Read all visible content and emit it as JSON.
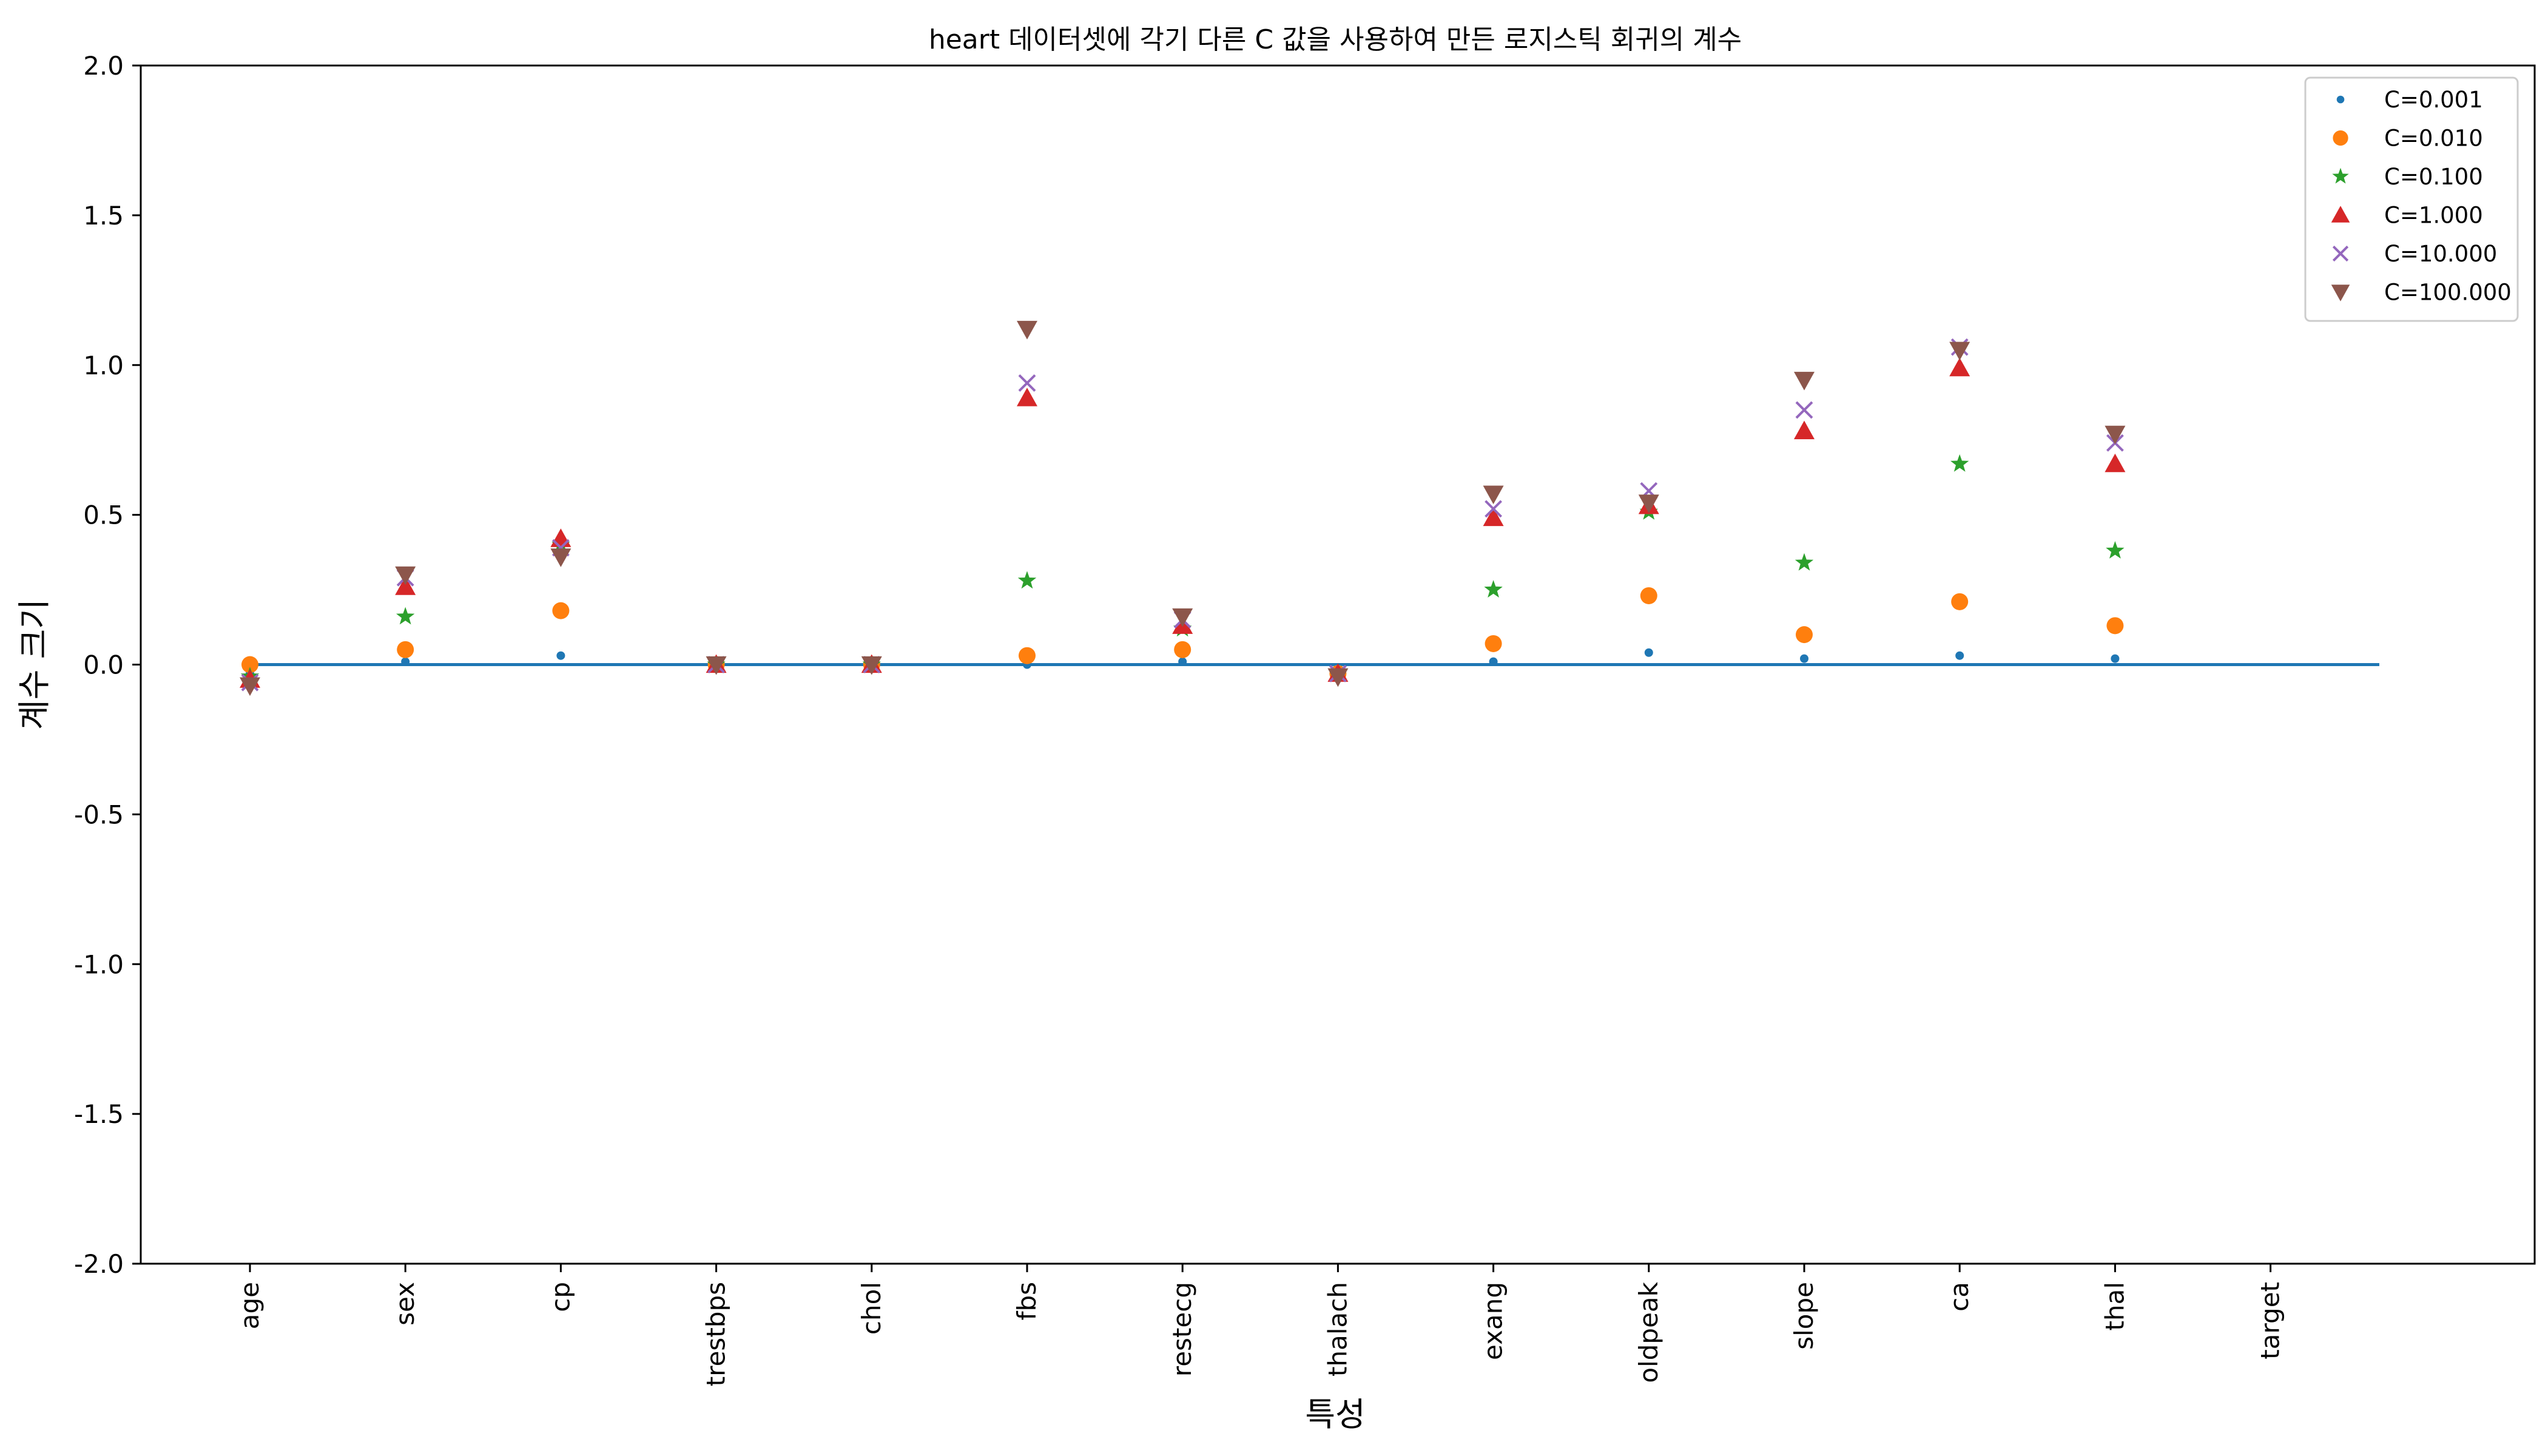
{
  "chart_data": {
    "type": "scatter",
    "title": "heart 데이터셋에 각기 다른 C 값을 사용하여 만든 로지스틱 회귀의 계수",
    "xlabel": "특성",
    "ylabel": "계수 크기",
    "ylim": [
      -2.0,
      2.0
    ],
    "yticks": [
      "-2.0",
      "-1.5",
      "-1.0",
      "-0.5",
      "0.0",
      "0.5",
      "1.0",
      "1.5",
      "2.0"
    ],
    "categories": [
      "age",
      "sex",
      "cp",
      "trestbps",
      "chol",
      "fbs",
      "restecg",
      "thalach",
      "exang",
      "oldpeak",
      "slope",
      "ca",
      "thal",
      "target"
    ],
    "grid": false,
    "legend_position": "top-right",
    "zero_line": {
      "from": "age",
      "to_index": 13.7,
      "y": 0.0,
      "color": "#1f77b4"
    },
    "series": [
      {
        "name": "C=0.001",
        "marker": "dot",
        "color": "#1f77b4",
        "values": [
          -0.03,
          0.01,
          0.03,
          0.0,
          0.0,
          0.0,
          0.01,
          -0.02,
          0.01,
          0.04,
          0.02,
          0.03,
          0.02
        ]
      },
      {
        "name": "C=0.010",
        "marker": "circle",
        "color": "#ff7f0e",
        "values": [
          0.0,
          0.05,
          0.18,
          0.0,
          0.0,
          0.03,
          0.05,
          -0.03,
          0.07,
          0.23,
          0.1,
          0.21,
          0.13
        ]
      },
      {
        "name": "C=0.100",
        "marker": "star",
        "color": "#2ca02c",
        "values": [
          -0.04,
          0.16,
          0.4,
          0.0,
          0.0,
          0.28,
          0.12,
          -0.03,
          0.25,
          0.51,
          0.34,
          0.67,
          0.38
        ]
      },
      {
        "name": "C=1.000",
        "marker": "triangle-up",
        "color": "#d62728",
        "values": [
          -0.05,
          0.26,
          0.42,
          0.0,
          0.0,
          0.89,
          0.13,
          -0.03,
          0.49,
          0.53,
          0.78,
          0.99,
          0.67
        ]
      },
      {
        "name": "C=10.000",
        "marker": "x",
        "color": "#9467bd",
        "values": [
          -0.06,
          0.29,
          0.39,
          0.0,
          0.0,
          0.94,
          0.15,
          -0.03,
          0.52,
          0.58,
          0.85,
          1.06,
          0.74
        ]
      },
      {
        "name": "C=100.000",
        "marker": "triangle-down",
        "color": "#8c564b",
        "values": [
          -0.07,
          0.3,
          0.36,
          0.0,
          0.0,
          1.12,
          0.16,
          -0.04,
          0.57,
          0.54,
          0.95,
          1.05,
          0.77
        ]
      }
    ]
  }
}
